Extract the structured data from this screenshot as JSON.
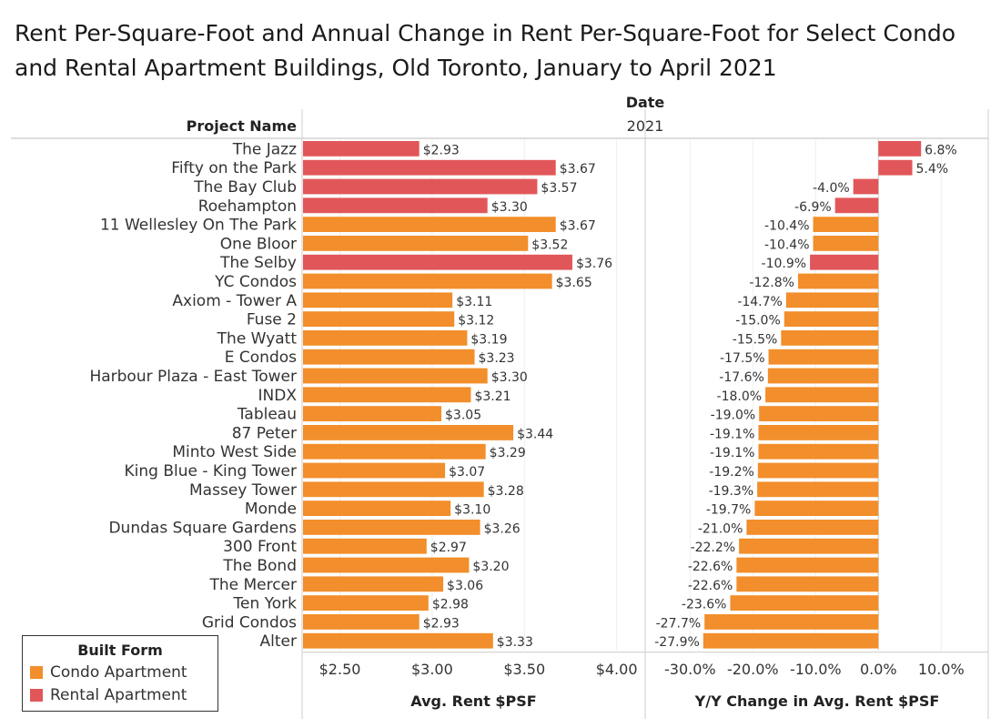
{
  "chart_data": {
    "type": "bar",
    "title": "Rent Per-Square-Foot and Annual Change in Rent Per-Square-Foot for Select Condo and Rental Apartment Buildings, Old Toronto, January to April 2021",
    "column_header": "Date",
    "column_value": "2021",
    "row_header": "Project Name",
    "legend": {
      "title": "Built Form",
      "placement": "bottom-left",
      "items": [
        {
          "label": "Condo Apartment",
          "color": "#F28E2B"
        },
        {
          "label": "Rental Apartment",
          "color": "#E15759"
        }
      ]
    },
    "rows": [
      {
        "name": "The Jazz",
        "form": "Rental Apartment",
        "rent": 2.93,
        "rent_label": "$2.93",
        "change": 6.8,
        "change_label": "6.8%"
      },
      {
        "name": "Fifty on the Park",
        "form": "Rental Apartment",
        "rent": 3.67,
        "rent_label": "$3.67",
        "change": 5.4,
        "change_label": "5.4%"
      },
      {
        "name": "The Bay Club",
        "form": "Rental Apartment",
        "rent": 3.57,
        "rent_label": "$3.57",
        "change": -4.0,
        "change_label": "-4.0%"
      },
      {
        "name": "Roehampton",
        "form": "Rental Apartment",
        "rent": 3.3,
        "rent_label": "$3.30",
        "change": -6.9,
        "change_label": "-6.9%"
      },
      {
        "name": "11 Wellesley On The Park",
        "form": "Condo Apartment",
        "rent": 3.67,
        "rent_label": "$3.67",
        "change": -10.4,
        "change_label": "-10.4%"
      },
      {
        "name": "One Bloor",
        "form": "Condo Apartment",
        "rent": 3.52,
        "rent_label": "$3.52",
        "change": -10.4,
        "change_label": "-10.4%"
      },
      {
        "name": "The Selby",
        "form": "Rental Apartment",
        "rent": 3.76,
        "rent_label": "$3.76",
        "change": -10.9,
        "change_label": "-10.9%"
      },
      {
        "name": "YC Condos",
        "form": "Condo Apartment",
        "rent": 3.65,
        "rent_label": "$3.65",
        "change": -12.8,
        "change_label": "-12.8%"
      },
      {
        "name": "Axiom - Tower A",
        "form": "Condo Apartment",
        "rent": 3.11,
        "rent_label": "$3.11",
        "change": -14.7,
        "change_label": "-14.7%"
      },
      {
        "name": "Fuse 2",
        "form": "Condo Apartment",
        "rent": 3.12,
        "rent_label": "$3.12",
        "change": -15.0,
        "change_label": "-15.0%"
      },
      {
        "name": "The Wyatt",
        "form": "Condo Apartment",
        "rent": 3.19,
        "rent_label": "$3.19",
        "change": -15.5,
        "change_label": "-15.5%"
      },
      {
        "name": "E Condos",
        "form": "Condo Apartment",
        "rent": 3.23,
        "rent_label": "$3.23",
        "change": -17.5,
        "change_label": "-17.5%"
      },
      {
        "name": "Harbour Plaza - East Tower",
        "form": "Condo Apartment",
        "rent": 3.3,
        "rent_label": "$3.30",
        "change": -17.6,
        "change_label": "-17.6%"
      },
      {
        "name": "INDX",
        "form": "Condo Apartment",
        "rent": 3.21,
        "rent_label": "$3.21",
        "change": -18.0,
        "change_label": "-18.0%"
      },
      {
        "name": "Tableau",
        "form": "Condo Apartment",
        "rent": 3.05,
        "rent_label": "$3.05",
        "change": -19.0,
        "change_label": "-19.0%"
      },
      {
        "name": "87 Peter",
        "form": "Condo Apartment",
        "rent": 3.44,
        "rent_label": "$3.44",
        "change": -19.1,
        "change_label": "-19.1%"
      },
      {
        "name": "Minto West Side",
        "form": "Condo Apartment",
        "rent": 3.29,
        "rent_label": "$3.29",
        "change": -19.1,
        "change_label": "-19.1%"
      },
      {
        "name": "King Blue - King Tower",
        "form": "Condo Apartment",
        "rent": 3.07,
        "rent_label": "$3.07",
        "change": -19.2,
        "change_label": "-19.2%"
      },
      {
        "name": "Massey Tower",
        "form": "Condo Apartment",
        "rent": 3.28,
        "rent_label": "$3.28",
        "change": -19.3,
        "change_label": "-19.3%"
      },
      {
        "name": "Monde",
        "form": "Condo Apartment",
        "rent": 3.1,
        "rent_label": "$3.10",
        "change": -19.7,
        "change_label": "-19.7%"
      },
      {
        "name": "Dundas Square Gardens",
        "form": "Condo Apartment",
        "rent": 3.26,
        "rent_label": "$3.26",
        "change": -21.0,
        "change_label": "-21.0%"
      },
      {
        "name": "300 Front",
        "form": "Condo Apartment",
        "rent": 2.97,
        "rent_label": "$2.97",
        "change": -22.2,
        "change_label": "-22.2%"
      },
      {
        "name": "The Bond",
        "form": "Condo Apartment",
        "rent": 3.2,
        "rent_label": "$3.20",
        "change": -22.6,
        "change_label": "-22.6%"
      },
      {
        "name": "The Mercer",
        "form": "Condo Apartment",
        "rent": 3.06,
        "rent_label": "$3.06",
        "change": -22.6,
        "change_label": "-22.6%"
      },
      {
        "name": "Ten York",
        "form": "Condo Apartment",
        "rent": 2.98,
        "rent_label": "$2.98",
        "change": -23.6,
        "change_label": "-23.6%"
      },
      {
        "name": "Grid Condos",
        "form": "Condo Apartment",
        "rent": 2.93,
        "rent_label": "$2.93",
        "change": -27.7,
        "change_label": "-27.7%"
      },
      {
        "name": "Alter",
        "form": "Condo Apartment",
        "rent": 3.33,
        "rent_label": "$3.33",
        "change": -27.9,
        "change_label": "-27.9%"
      }
    ],
    "panels": [
      {
        "key": "rent",
        "label_key": "rent_label",
        "xlabel": "Avg. Rent $PSF",
        "xlim": [
          2.3,
          4.15
        ],
        "ticks": [
          2.5,
          3.0,
          3.5,
          4.0
        ],
        "tick_labels": [
          "$2.50",
          "$3.00",
          "$3.50",
          "$4.00"
        ],
        "baseline": 2.3
      },
      {
        "key": "change",
        "label_key": "change_label",
        "xlabel": "Y/Y Change in Avg. Rent $PSF",
        "xlim": [
          -37,
          17.5
        ],
        "ticks": [
          -30,
          -20,
          -10,
          0,
          10
        ],
        "tick_labels": [
          "-30.0%",
          "-20.0%",
          "-10.0%",
          "0.0%",
          "10.0%"
        ],
        "baseline": 0
      }
    ],
    "grid": true
  }
}
